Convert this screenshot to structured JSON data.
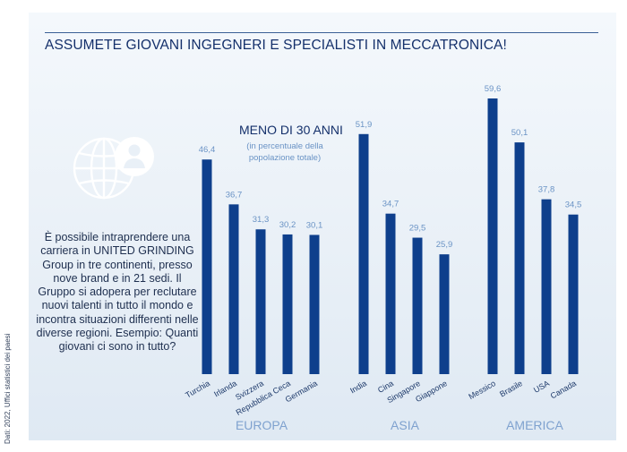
{
  "title": "ASSUMETE GIOVANI INGEGNERI E SPECIALISTI IN MECCATRONICA!",
  "subtitle": "MENO DI 30 ANNI",
  "note_line1": "(in percentuale della",
  "note_line2": "popolazione totale)",
  "description": "È possibile intraprendere una carriera in UNITED GRINDING Group in tre continenti, presso nove brand e in 21 sedi. Il Gruppo si adopera per reclutare nuovi talenti in tutto il mondo e incontra situazioni differenti nelle diverse regioni. Esempio: Quanti giovani ci sono in tutto?",
  "source": "Dati: 2022, Uffici statistici dei paesi",
  "icons": [
    "globe-icon",
    "person-icon"
  ],
  "colors": {
    "bar": "#0e3f8c",
    "value_label": "#6a93c5",
    "group_label": "#7fa2cf",
    "title": "#14306b"
  },
  "chart_data": {
    "type": "bar",
    "title": "ASSUMETE GIOVANI INGEGNERI E SPECIALISTI IN MECCATRONICA!",
    "ylabel": "",
    "ylim": [
      0,
      60
    ],
    "grid": false,
    "groups": [
      {
        "name": "EUROPA",
        "categories": [
          "Turchia",
          "Irlanda",
          "Svizzera",
          "Repubblica Ceca",
          "Germania"
        ],
        "values": [
          46.4,
          36.7,
          31.3,
          30.2,
          30.1
        ],
        "labels": [
          "46,4",
          "36,7",
          "31,3",
          "30,2",
          "30,1"
        ]
      },
      {
        "name": "ASIA",
        "categories": [
          "India",
          "Cina",
          "Singapore",
          "Giappone"
        ],
        "values": [
          51.9,
          34.7,
          29.5,
          25.9
        ],
        "labels": [
          "51,9",
          "34,7",
          "29,5",
          "25,9"
        ]
      },
      {
        "name": "AMERICA",
        "categories": [
          "Messico",
          "Brasile",
          "USA",
          "Canada"
        ],
        "values": [
          59.6,
          50.1,
          37.8,
          34.5
        ],
        "labels": [
          "59,6",
          "50,1",
          "37,8",
          "34,5"
        ]
      }
    ]
  }
}
